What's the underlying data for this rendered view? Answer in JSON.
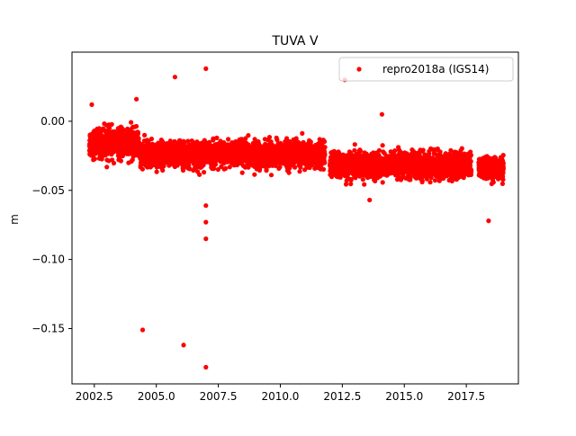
{
  "chart_data": {
    "type": "scatter",
    "title": "TUVA V",
    "xlabel": "",
    "ylabel": "m",
    "xlim": [
      2001.6,
      2019.6
    ],
    "ylim": [
      -0.19,
      0.05
    ],
    "x_ticks": [
      2002.5,
      2005.0,
      2007.5,
      2010.0,
      2012.5,
      2015.0,
      2017.5
    ],
    "x_tick_labels": [
      "2002.5",
      "2005.0",
      "2007.5",
      "2010.0",
      "2012.5",
      "2015.0",
      "2017.5"
    ],
    "y_ticks": [
      0.0,
      -0.05,
      -0.1,
      -0.15
    ],
    "y_tick_labels": [
      "0.00",
      "−0.05",
      "−0.10",
      "−0.15"
    ],
    "grid": false,
    "legend_position": "top-right",
    "series": [
      {
        "name": "repro2018a (IGS14)",
        "color": "#ff0000",
        "marker": "circle",
        "segments": [
          {
            "x_start": 2002.3,
            "x_end": 2004.3,
            "y_center": -0.016,
            "y_spread": 0.009
          },
          {
            "x_start": 2004.35,
            "x_end": 2011.8,
            "y_center": -0.024,
            "y_spread": 0.008
          },
          {
            "x_start": 2012.0,
            "x_end": 2017.7,
            "y_center": -0.032,
            "y_spread": 0.008
          },
          {
            "x_start": 2018.0,
            "x_end": 2019.0,
            "y_center": -0.034,
            "y_spread": 0.007
          }
        ],
        "outliers": [
          {
            "x": 2002.4,
            "y": 0.012
          },
          {
            "x": 2004.2,
            "y": 0.016
          },
          {
            "x": 2005.75,
            "y": 0.032
          },
          {
            "x": 2007.0,
            "y": 0.038
          },
          {
            "x": 2012.6,
            "y": 0.03
          },
          {
            "x": 2014.1,
            "y": 0.005
          },
          {
            "x": 2013.6,
            "y": -0.057
          },
          {
            "x": 2007.0,
            "y": -0.061
          },
          {
            "x": 2007.0,
            "y": -0.073
          },
          {
            "x": 2007.0,
            "y": -0.085
          },
          {
            "x": 2018.4,
            "y": -0.072
          },
          {
            "x": 2004.45,
            "y": -0.151
          },
          {
            "x": 2006.1,
            "y": -0.162
          },
          {
            "x": 2007.0,
            "y": -0.178
          }
        ]
      }
    ]
  }
}
